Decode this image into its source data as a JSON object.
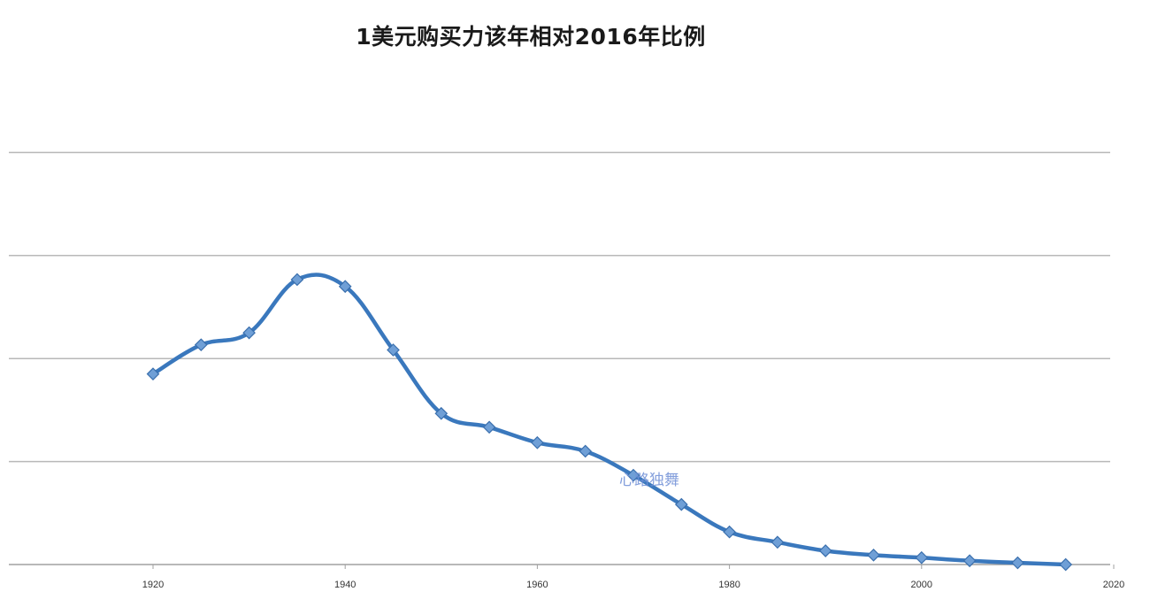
{
  "chart_data": {
    "type": "line",
    "title": "1美元购买力该年相对2016年比例",
    "xlabel": "",
    "ylabel": "",
    "xlim": [
      1905,
      2020
    ],
    "ylim": [
      0,
      24
    ],
    "x_ticks": [
      1920,
      1940,
      1960,
      1980,
      2000,
      2020
    ],
    "grid": true,
    "y_tick_labels_shown": false,
    "series": [
      {
        "color": "#3a78bd",
        "smooth": true,
        "marker": "diamond",
        "points": [
          {
            "x": 1920,
            "y": 11.1
          },
          {
            "x": 1925,
            "y": 12.8
          },
          {
            "x": 1930,
            "y": 13.5
          },
          {
            "x": 1935,
            "y": 16.6
          },
          {
            "x": 1940,
            "y": 16.2
          },
          {
            "x": 1945,
            "y": 12.5
          },
          {
            "x": 1950,
            "y": 8.8
          },
          {
            "x": 1955,
            "y": 8.0
          },
          {
            "x": 1960,
            "y": 7.1
          },
          {
            "x": 1965,
            "y": 6.6
          },
          {
            "x": 1970,
            "y": 5.2
          },
          {
            "x": 1975,
            "y": 3.5
          },
          {
            "x": 1980,
            "y": 1.9
          },
          {
            "x": 1985,
            "y": 1.3
          },
          {
            "x": 1990,
            "y": 0.8
          },
          {
            "x": 1995,
            "y": 0.55
          },
          {
            "x": 2000,
            "y": 0.4
          },
          {
            "x": 2005,
            "y": 0.22
          },
          {
            "x": 2010,
            "y": 0.1
          },
          {
            "x": 2015,
            "y": 0.0
          }
        ]
      }
    ]
  },
  "watermark": "心路独舞"
}
